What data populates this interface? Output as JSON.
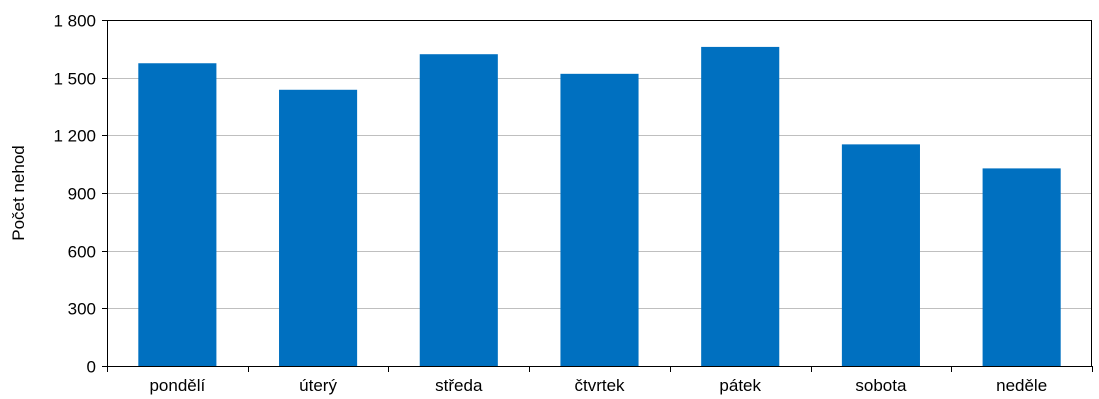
{
  "chart_data": {
    "type": "bar",
    "ylabel": "Počet nehod",
    "categories": [
      "pondělí",
      "úterý",
      "středa",
      "čtvrtek",
      "pátek",
      "sobota",
      "neděle"
    ],
    "values": [
      1575,
      1437,
      1622,
      1520,
      1660,
      1153,
      1028
    ],
    "ylim": [
      0,
      1800
    ],
    "yticks": [
      0,
      300,
      600,
      900,
      1200,
      1500,
      1800
    ],
    "ytick_labels": [
      "0",
      "300",
      "600",
      "900",
      "1 200",
      "1 500",
      "1 800"
    ],
    "grid": true,
    "legend": "none",
    "bar_color": "#0070C0",
    "grid_color": "#BFBFBF"
  }
}
